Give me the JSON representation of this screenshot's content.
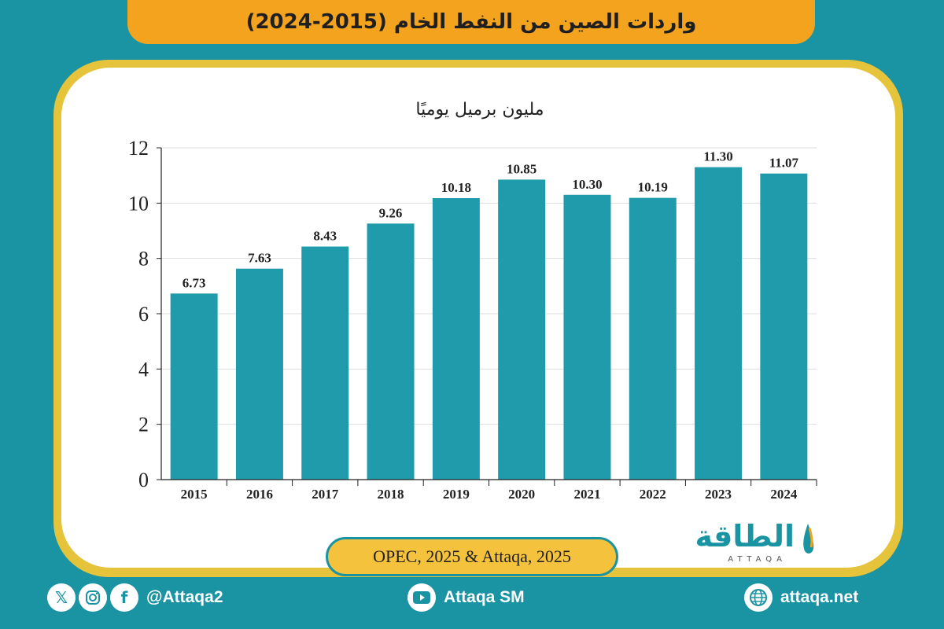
{
  "header": {
    "title": "واردات الصين من النفط الخام (2015-2024)"
  },
  "chart_data": {
    "type": "bar",
    "title": "",
    "subtitle": "مليون برميل يوميًا",
    "xlabel": "",
    "ylabel": "",
    "categories": [
      "2015",
      "2016",
      "2017",
      "2018",
      "2019",
      "2020",
      "2021",
      "2022",
      "2023",
      "2024"
    ],
    "values": [
      6.73,
      7.63,
      8.43,
      9.26,
      10.18,
      10.85,
      10.3,
      10.19,
      11.3,
      11.07
    ],
    "value_labels": [
      "6.73",
      "7.63",
      "8.43",
      "9.26",
      "10.18",
      "10.85",
      "10.30",
      "10.19",
      "11.30",
      "11.07"
    ],
    "yticks": [
      "0",
      "2",
      "4",
      "6",
      "8",
      "10",
      "12"
    ],
    "ylim": [
      0,
      12
    ],
    "grid": true,
    "legend": "none",
    "bar_color": "#1f9bab"
  },
  "source": {
    "text": "OPEC, 2025 & Attaqa, 2025"
  },
  "logo": {
    "name": "الطاقة",
    "sub": "ATTAQA"
  },
  "footer": {
    "social_handle": "@Attaqa2",
    "youtube": "Attaqa SM",
    "website": "attaqa.net"
  },
  "icons": {
    "x": "x-icon",
    "instagram": "instagram-icon",
    "facebook": "facebook-icon",
    "youtube": "youtube-icon",
    "globe": "globe-icon"
  },
  "colors": {
    "background": "#1a93a3",
    "title_bar": "#f4a31f",
    "card_border": "#e5c33a",
    "bars": "#1f9bab"
  }
}
